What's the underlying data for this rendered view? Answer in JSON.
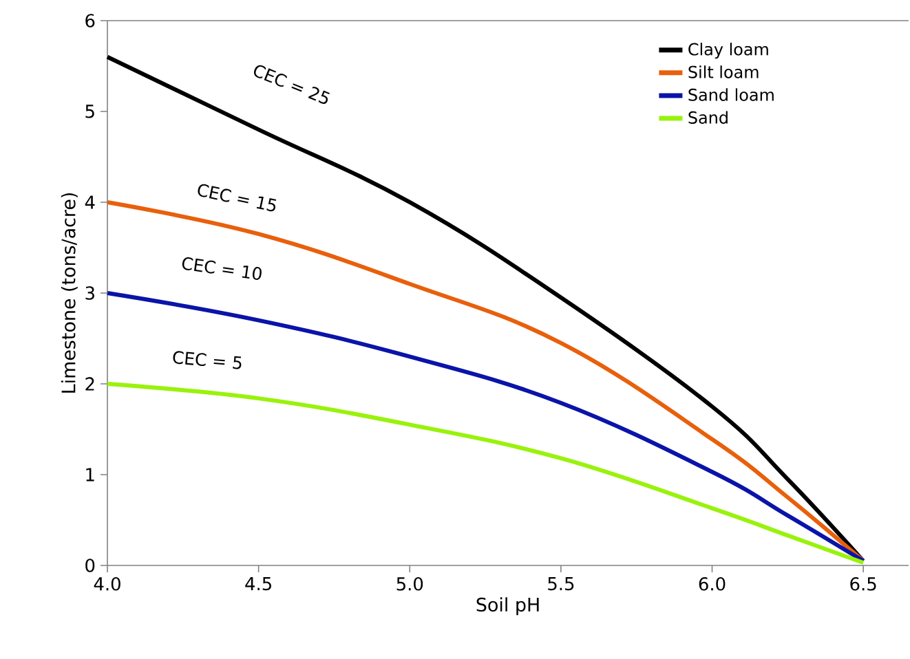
{
  "chart_data": {
    "type": "line",
    "xlabel": "Soil pH",
    "ylabel": "Limestone (tons/acre)",
    "x": [
      4.0,
      4.5,
      5.0,
      5.5,
      6.0,
      6.25,
      6.5
    ],
    "series": [
      {
        "name": "Clay loam",
        "color": "#000000",
        "values": [
          5.6,
          4.8,
          4.0,
          2.95,
          1.75,
          0.95,
          0.05
        ]
      },
      {
        "name": "Silt loam",
        "color": "#e8600c",
        "values": [
          4.0,
          3.65,
          3.1,
          2.45,
          1.39,
          0.75,
          0.05
        ]
      },
      {
        "name": "Sand loam",
        "color": "#0a14a8",
        "values": [
          3.0,
          2.7,
          2.3,
          1.79,
          1.03,
          0.55,
          0.05
        ]
      },
      {
        "name": "Sand",
        "color": "#99f20c",
        "values": [
          2.0,
          1.84,
          1.55,
          1.18,
          0.63,
          0.33,
          0.03
        ]
      }
    ],
    "annotations": [
      "CEC = 25",
      "CEC = 15",
      "CEC = 10",
      "CEC = 5"
    ],
    "xlim": [
      4.0,
      6.65
    ],
    "ylim": [
      0,
      6
    ],
    "xticks": [
      {
        "value": 4.0,
        "label": "4.0"
      },
      4.5,
      {
        "value": 5.0,
        "label": "5.0"
      },
      5.5,
      {
        "value": 6.0,
        "label": "6.0"
      },
      6.5
    ],
    "yticks": [
      0,
      1,
      2,
      3,
      4,
      5,
      6
    ],
    "grid": false,
    "legend": "top right",
    "marker": "none",
    "line_style": "solid"
  }
}
